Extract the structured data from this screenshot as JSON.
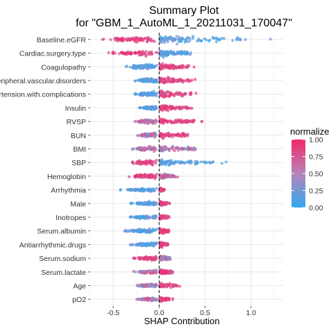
{
  "chart_data": {
    "type": "scatter",
    "title": "Summary Plot",
    "subtitle": "for \"GBM_1_AutoML_1_20211031_170047\"",
    "xlabel": "SHAP Contribution",
    "ylabel": "",
    "xlim": [
      -0.75,
      1.35
    ],
    "xticks": [
      -0.5,
      0.0,
      0.5,
      1.0
    ],
    "xtick_labels": [
      "-0.5",
      "0.0",
      "0.5",
      "1.0"
    ],
    "grid": true,
    "legend": {
      "title": "normalize",
      "position": "right",
      "ticks": [
        1.0,
        0.75,
        0.5,
        0.25,
        0.0
      ],
      "tick_labels": [
        "1.00",
        "0.75",
        "0.50",
        "0.25",
        "0.00"
      ],
      "low_color": "#2fa8f0",
      "mid_color": "#b784b8",
      "high_color": "#f0286b"
    },
    "reference_line_x": 0,
    "features": [
      {
        "name": "Baseline.eGFR",
        "left_min": -0.62,
        "left_max": -0.02,
        "right_max": 1.28,
        "left_color": "high",
        "right_color": "low",
        "width": 1.0
      },
      {
        "name": "Cardiac.surgery.type",
        "left_min": -0.55,
        "left_max": -0.02,
        "right_max": 0.45,
        "left_color": "high",
        "right_color": "low",
        "width": 0.9
      },
      {
        "name": "Coagulopathy",
        "left_min": -0.38,
        "left_max": -0.02,
        "right_max": 0.43,
        "left_color": "low",
        "right_color": "high",
        "width": 0.85
      },
      {
        "name": "Peripheral.vascular.disorders",
        "left_min": -0.28,
        "left_max": -0.02,
        "right_max": 0.48,
        "left_color": "low",
        "right_color": "high",
        "width": 0.8
      },
      {
        "name": "Hypertension.with.complications",
        "left_min": -0.27,
        "left_max": -0.02,
        "right_max": 0.5,
        "left_color": "low",
        "right_color": "high",
        "width": 0.8
      },
      {
        "name": "Insulin",
        "left_min": -0.22,
        "left_max": -0.02,
        "right_max": 0.45,
        "left_color": "low",
        "right_color": "high",
        "width": 0.65
      },
      {
        "name": "RVSP",
        "left_min": -0.28,
        "left_max": -0.02,
        "right_max": 0.55,
        "left_color": "mixed",
        "right_color": "high",
        "width": 0.7
      },
      {
        "name": "BUN",
        "left_min": -0.25,
        "left_max": -0.02,
        "right_max": 0.45,
        "left_color": "mixed",
        "right_color": "high",
        "width": 0.75
      },
      {
        "name": "BMI",
        "left_min": -0.3,
        "left_max": -0.02,
        "right_max": 0.6,
        "left_color": "mixed",
        "right_color": "mixed",
        "width": 0.8
      },
      {
        "name": "SBP",
        "left_min": -0.32,
        "left_max": -0.02,
        "right_max": 0.8,
        "left_color": "high",
        "right_color": "low",
        "width": 0.8
      },
      {
        "name": "Hemoglobin",
        "left_min": -0.35,
        "left_max": -0.02,
        "right_max": 0.25,
        "left_color": "high",
        "right_color": "mixed",
        "width": 0.7
      },
      {
        "name": "Arrhythmia",
        "left_min": -0.43,
        "left_max": -0.02,
        "right_max": 0.08,
        "left_color": "low",
        "right_color": "high",
        "width": 0.5
      },
      {
        "name": "Male",
        "left_min": -0.32,
        "left_max": -0.02,
        "right_max": 0.12,
        "left_color": "low",
        "right_color": "high",
        "width": 0.55
      },
      {
        "name": "Inotropes",
        "left_min": -0.33,
        "left_max": -0.02,
        "right_max": 0.14,
        "left_color": "low",
        "right_color": "high",
        "width": 0.55
      },
      {
        "name": "Serum.albumin",
        "left_min": -0.38,
        "left_max": -0.02,
        "right_max": 0.15,
        "left_color": "low",
        "right_color": "high",
        "width": 0.7
      },
      {
        "name": "Antiarrhythmic.drugs",
        "left_min": -0.32,
        "left_max": -0.02,
        "right_max": 0.14,
        "left_color": "low",
        "right_color": "high",
        "width": 0.65
      },
      {
        "name": "Serum.sodium",
        "left_min": -0.28,
        "left_max": -0.02,
        "right_max": 0.17,
        "left_color": "high",
        "right_color": "mixed",
        "width": 0.6
      },
      {
        "name": "Serum.lactate",
        "left_min": -0.28,
        "left_max": -0.02,
        "right_max": 0.2,
        "left_color": "mixed",
        "right_color": "high",
        "width": 0.6
      },
      {
        "name": "Age",
        "left_min": -0.25,
        "left_max": -0.02,
        "right_max": 0.3,
        "left_color": "mixed",
        "right_color": "high",
        "width": 0.6
      },
      {
        "name": "pO2",
        "left_min": -0.25,
        "left_max": -0.02,
        "right_max": 0.16,
        "left_color": "mixed",
        "right_color": "high",
        "width": 0.6
      }
    ]
  }
}
